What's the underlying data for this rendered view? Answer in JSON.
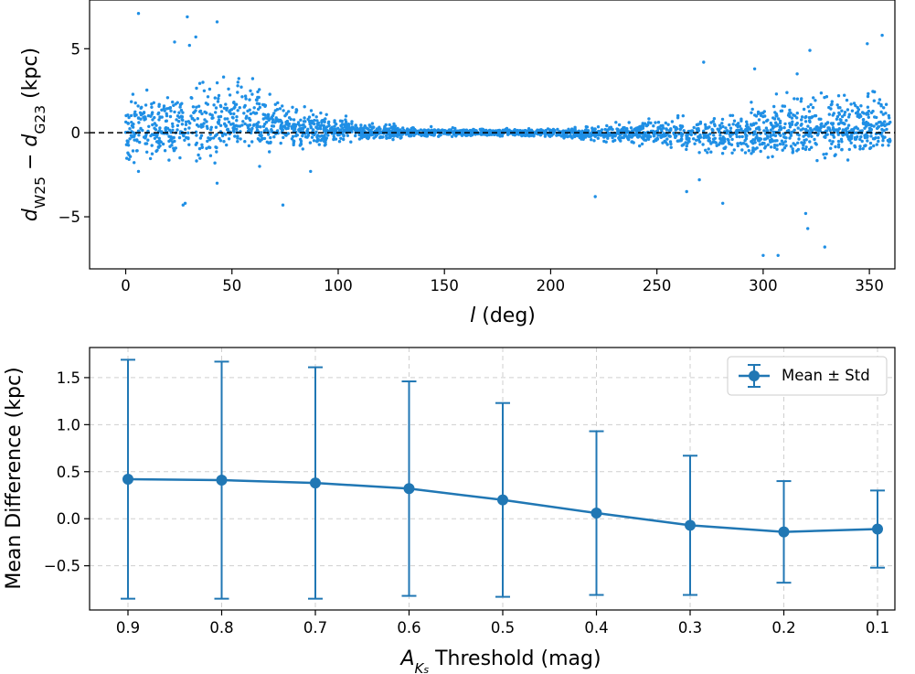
{
  "chart_data": [
    {
      "type": "scatter",
      "ylabel_parts": {
        "d1": "d",
        "sub1": "W25",
        "minus": " − ",
        "d2": "d",
        "sub2": "G23",
        "unit": " (kpc)"
      },
      "xlabel_parts": {
        "var": "l",
        "unit": " (deg)"
      },
      "xlim": [
        -17,
        362
      ],
      "ylim": [
        -8.1,
        7.9
      ],
      "xticks": [
        0,
        50,
        100,
        150,
        200,
        250,
        300,
        350
      ],
      "xtick_labels": [
        "0",
        "50",
        "100",
        "150",
        "200",
        "250",
        "300",
        "350"
      ],
      "yticks": [
        -5,
        0,
        5
      ],
      "ytick_labels": [
        "−5",
        "0",
        "5"
      ],
      "grid": false,
      "reference_line": {
        "y": 0,
        "style": "dashed",
        "color": "#000000"
      },
      "color": "#1f8fe5",
      "outliers": [
        [
          6,
          7.1
        ],
        [
          29,
          6.9
        ],
        [
          43,
          6.6
        ],
        [
          33,
          5.7
        ],
        [
          23,
          5.4
        ],
        [
          30,
          5.2
        ],
        [
          27,
          -4.3
        ],
        [
          28,
          -4.2
        ],
        [
          74,
          -4.3
        ],
        [
          43,
          -3.0
        ],
        [
          42,
          -1.8
        ],
        [
          6,
          -2.3
        ],
        [
          221,
          -3.8
        ],
        [
          320,
          -4.8
        ],
        [
          321,
          -5.7
        ],
        [
          300,
          -7.3
        ],
        [
          307,
          -7.3
        ],
        [
          329,
          -6.8
        ],
        [
          349,
          5.3
        ],
        [
          356,
          5.8
        ],
        [
          322,
          4.9
        ],
        [
          272,
          4.2
        ],
        [
          281,
          -4.2
        ],
        [
          296,
          3.8
        ],
        [
          316,
          3.5
        ],
        [
          87,
          -2.3
        ],
        [
          63,
          -2.0
        ],
        [
          264,
          -3.5
        ],
        [
          270,
          -2.8
        ]
      ],
      "density_profile": [
        {
          "l": 0,
          "bias": 0.4,
          "spread": 1.5
        },
        {
          "l": 20,
          "bias": 0.6,
          "spread": 1.5
        },
        {
          "l": 40,
          "bias": 1.2,
          "spread": 1.7
        },
        {
          "l": 55,
          "bias": 1.8,
          "spread": 1.4
        },
        {
          "l": 70,
          "bias": 0.9,
          "spread": 1.0
        },
        {
          "l": 90,
          "bias": 0.5,
          "spread": 0.75
        },
        {
          "l": 110,
          "bias": 0.2,
          "spread": 0.4
        },
        {
          "l": 140,
          "bias": 0.1,
          "spread": 0.25
        },
        {
          "l": 170,
          "bias": 0.0,
          "spread": 0.15
        },
        {
          "l": 200,
          "bias": 0.0,
          "spread": 0.2
        },
        {
          "l": 230,
          "bias": -0.1,
          "spread": 0.45
        },
        {
          "l": 260,
          "bias": -0.1,
          "spread": 0.7
        },
        {
          "l": 285,
          "bias": -0.3,
          "spread": 1.0
        },
        {
          "l": 300,
          "bias": 0.3,
          "spread": 1.3
        },
        {
          "l": 320,
          "bias": 0.9,
          "spread": 1.5
        },
        {
          "l": 345,
          "bias": 1.0,
          "spread": 1.4
        },
        {
          "l": 360,
          "bias": 0.6,
          "spread": 1.3
        }
      ],
      "n_points": 2600
    },
    {
      "type": "line",
      "categories": [
        "0.9",
        "0.8",
        "0.7",
        "0.6",
        "0.5",
        "0.4",
        "0.3",
        "0.2",
        "0.1"
      ],
      "series": [
        {
          "name": "Mean ± Std",
          "values": [
            0.42,
            0.41,
            0.38,
            0.32,
            0.2,
            0.06,
            -0.07,
            -0.14,
            -0.11
          ],
          "error": [
            1.27,
            1.26,
            1.23,
            1.14,
            1.03,
            0.87,
            0.74,
            0.54,
            0.41
          ],
          "color": "#2077b4"
        }
      ],
      "ylabel": "Mean Difference (kpc)",
      "xlabel_parts": {
        "var": "A",
        "sub": "K",
        "subsub": "s",
        "rest": " Threshold (mag)"
      },
      "ylim": [
        -0.97,
        1.82
      ],
      "yticks": [
        -0.5,
        0.0,
        0.5,
        1.0,
        1.5
      ],
      "ytick_labels": [
        "−0.5",
        "0.0",
        "0.5",
        "1.0",
        "1.5"
      ],
      "grid": true,
      "legend_position": "top-right"
    }
  ]
}
